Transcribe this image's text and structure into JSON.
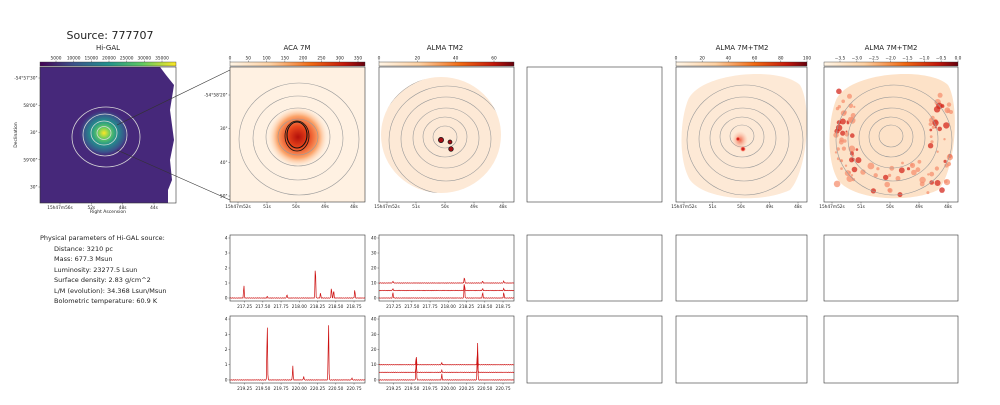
{
  "header": {
    "title": "Source: 777707"
  },
  "colors": {
    "frame": "#333333",
    "contour": "#9a9a9a",
    "spectrum": "#cc1010",
    "viridis_bg": "#46287a"
  },
  "panels": {
    "higal": {
      "title": "Hi-GAL",
      "colorbar_ticks": [
        "5000",
        "10000",
        "15000",
        "20000",
        "25000",
        "30000",
        "35000"
      ],
      "ylabel": "Declination",
      "xlabel": "Right Ascension",
      "yticks": [
        "-54°57'30\"",
        "58'00\"",
        "30\"",
        "59'00\"",
        "30\""
      ],
      "xticks": [
        "15h47m56s",
        "52s",
        "48s",
        "44s"
      ]
    },
    "aca7m": {
      "title": "ACA 7M",
      "colorbar_ticks": [
        "0",
        "50",
        "100",
        "150",
        "200",
        "250",
        "300",
        "350"
      ],
      "yticks": [
        "-54°58'20\"",
        "30\"",
        "40\"",
        "50\""
      ],
      "xticks": [
        "15h47m52s",
        "51s",
        "50s",
        "49s",
        "48s"
      ]
    },
    "almatm2": {
      "title": "ALMA TM2",
      "colorbar_ticks": [
        "0",
        "20",
        "40",
        "60"
      ],
      "xticks": [
        "15h47m52s",
        "51s",
        "50s",
        "49s",
        "48s"
      ]
    },
    "alma7mtm2": {
      "title": "ALMA 7M+TM2",
      "colorbar_ticks": [
        "0",
        "20",
        "40",
        "60",
        "80",
        "100"
      ],
      "xticks": [
        "15h47m52s",
        "51s",
        "50s",
        "49s",
        "48s"
      ]
    },
    "alma7mtm2log": {
      "title": "ALMA 7M+TM2",
      "colorbar_ticks": [
        "−3.5",
        "−3.0",
        "−2.5",
        "−2.0",
        "−1.5",
        "−1.0",
        "−0.5",
        "0.0"
      ],
      "xticks": [
        "15h47m52s",
        "51s",
        "50s",
        "49s",
        "48s"
      ]
    }
  },
  "params": {
    "heading": "Physical parameters of Hi-GAL source:",
    "lines": [
      "Distance: 3210 pc",
      "Mass: 677.3 Msun",
      "Luminosity: 23277.5 Lsun",
      "Surface density: 2.83 g/cm^2",
      "L/M (evolution): 34.368 Lsun/Msun",
      "Bolometric temperature: 60.9 K"
    ]
  },
  "chart_data": [
    {
      "type": "line",
      "panel": "ACA 7M spectrum window 1",
      "xlabels": [
        "217.25",
        "217.50",
        "217.75",
        "218.00",
        "218.25",
        "218.50",
        "218.75"
      ],
      "xlim": [
        217.05,
        218.9
      ],
      "ylim": [
        -0.2,
        4.2
      ],
      "yticks": [
        "0",
        "1",
        "2",
        "3",
        "4"
      ],
      "peaks": [
        [
          217.24,
          0.9
        ],
        [
          217.56,
          0.12
        ],
        [
          217.83,
          0.25
        ],
        [
          218.22,
          2.35
        ],
        [
          218.29,
          0.35
        ],
        [
          218.44,
          0.75
        ],
        [
          218.47,
          0.55
        ],
        [
          218.76,
          0.6
        ]
      ]
    },
    {
      "type": "line",
      "panel": "ALMA TM2 spectrum window 1",
      "xlabels": [
        "217.25",
        "217.50",
        "217.75",
        "218.00",
        "218.25",
        "218.50",
        "218.75"
      ],
      "xlim": [
        217.05,
        218.9
      ],
      "ylim": [
        -2,
        42
      ],
      "yticks": [
        "0",
        "10",
        "20",
        "30",
        "40"
      ],
      "baselines": [
        0,
        5,
        10
      ],
      "peaks": [
        [
          217.24,
          4
        ],
        [
          218.22,
          12
        ],
        [
          218.47,
          4
        ],
        [
          218.76,
          4
        ]
      ]
    },
    {
      "type": "line",
      "panel": "ACA 7M spectrum window 2",
      "xlabels": [
        "219.25",
        "219.50",
        "219.75",
        "220.00",
        "220.25",
        "220.50",
        "220.75"
      ],
      "xlim": [
        219.05,
        220.9
      ],
      "ylim": [
        -0.2,
        4.2
      ],
      "yticks": [
        "0",
        "1",
        "2",
        "3",
        "4"
      ],
      "peaks": [
        [
          219.56,
          4.0
        ],
        [
          219.91,
          0.95
        ],
        [
          220.06,
          0.25
        ],
        [
          220.4,
          4.0
        ],
        [
          220.72,
          0.15
        ]
      ]
    },
    {
      "type": "line",
      "panel": "ALMA TM2 spectrum window 2",
      "xlabels": [
        "219.25",
        "219.50",
        "219.75",
        "220.00",
        "220.25",
        "220.50",
        "220.75"
      ],
      "xlim": [
        219.05,
        220.9
      ],
      "ylim": [
        -2,
        42
      ],
      "yticks": [
        "0",
        "10",
        "20",
        "30",
        "40"
      ],
      "baselines": [
        0,
        5,
        10
      ],
      "peaks": [
        [
          219.56,
          16
        ],
        [
          219.91,
          4
        ],
        [
          220.4,
          27
        ]
      ]
    }
  ]
}
